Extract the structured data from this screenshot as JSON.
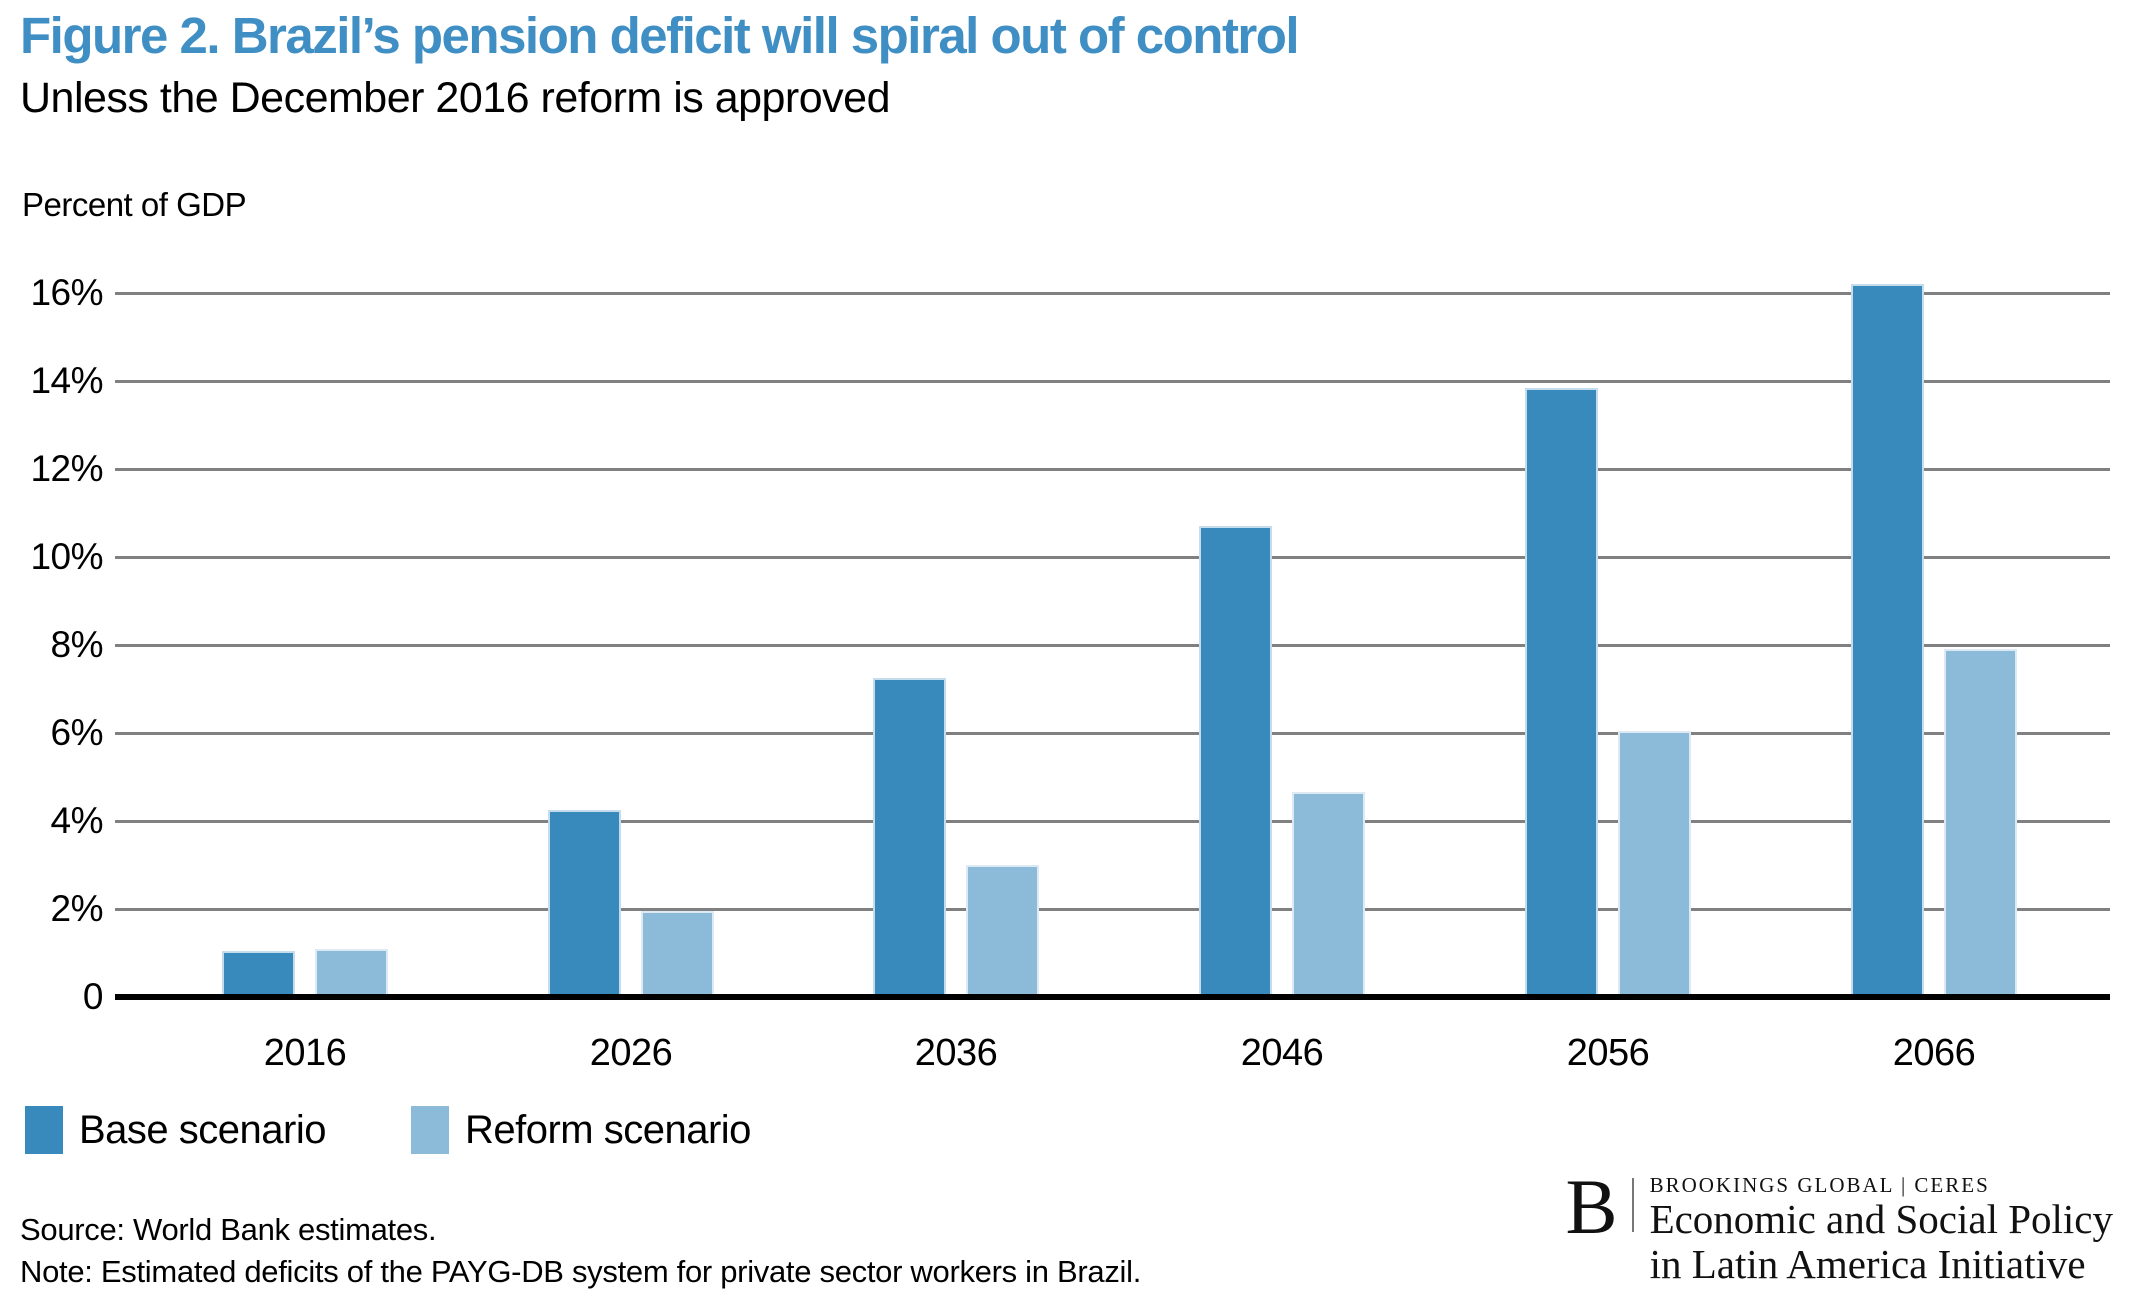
{
  "figure": {
    "title": "Figure 2. Brazil’s pension deficit will spiral out of control",
    "subtitle": "Unless the December 2016 reform is approved",
    "axis_title": "Percent of GDP",
    "source": "Source: World Bank estimates.",
    "note": "Note: Estimated deficits of the PAYG-DB system for private sector workers in Brazil."
  },
  "colors": {
    "title_blue": "#3F8FC5",
    "base_bar": "#398ABC",
    "reform_bar": "#8CBAD9",
    "gridline": "#808080",
    "axis": "#000000"
  },
  "chart_data": {
    "type": "bar",
    "title": "Figure 2. Brazil’s pension deficit will spiral out of control",
    "subtitle": "Unless the December 2016 reform is approved",
    "ylabel": "Percent of GDP",
    "xlabel": "",
    "categories": [
      "2016",
      "2026",
      "2036",
      "2046",
      "2056",
      "2066"
    ],
    "series": [
      {
        "name": "Base scenario",
        "color": "#398ABC",
        "values": [
          1.05,
          4.25,
          7.25,
          10.7,
          13.85,
          16.2
        ]
      },
      {
        "name": "Reform scenario",
        "color": "#8CBAD9",
        "values": [
          1.1,
          1.95,
          3.0,
          4.65,
          6.05,
          7.9
        ]
      }
    ],
    "ylim": [
      0,
      17
    ],
    "ytick_values": [
      0,
      2,
      4,
      6,
      8,
      10,
      12,
      14,
      16
    ],
    "ytick_labels": [
      "0",
      "2%",
      "4%",
      "6%",
      "8%",
      "10%",
      "12%",
      "14%",
      "16%"
    ],
    "grid": "horizontal",
    "legend_position": "bottom-left"
  },
  "legend": {
    "items": [
      {
        "label": "Base scenario",
        "color": "#398ABC"
      },
      {
        "label": "Reform scenario",
        "color": "#8CBAD9"
      }
    ]
  },
  "logo": {
    "b": "B",
    "line1": "BROOKINGS GLOBAL | CERES",
    "line2": "Economic and Social Policy",
    "line3": "in Latin America Initiative"
  }
}
